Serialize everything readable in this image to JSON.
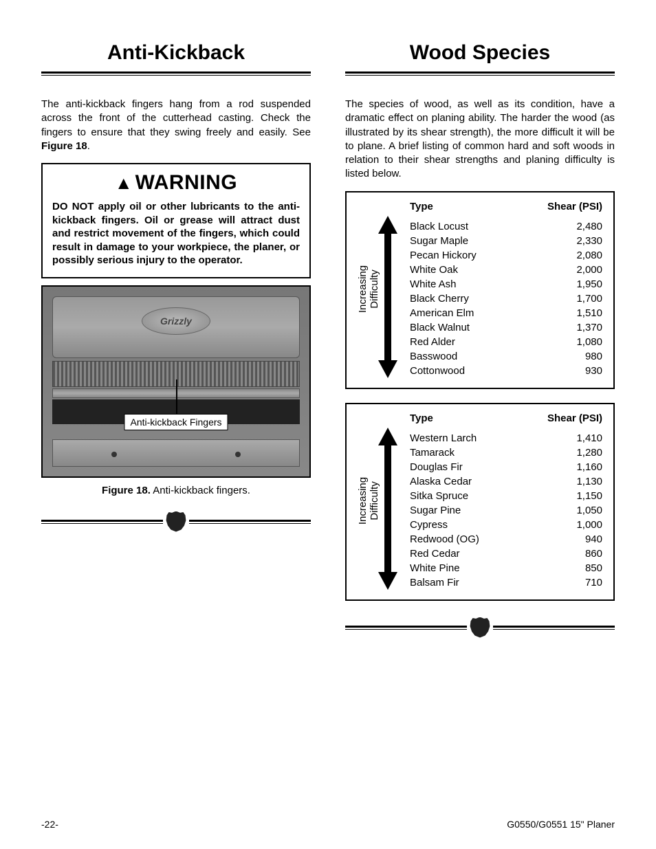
{
  "left": {
    "title": "Anti-Kickback",
    "intro": "The anti-kickback fingers hang from a rod suspended across the front of the cutterhead casting. Check the fingers to ensure that they swing freely and easily. See ",
    "intro_bold": "Figure 18",
    "intro_tail": ".",
    "warning_label": "WARNING",
    "warning_text": "DO NOT apply oil or other lubricants to the anti-kickback fingers. Oil or grease will attract dust and restrict movement of the fingers, which could result in damage to your workpiece, the planer, or possibly serious injury to the operator.",
    "brand": "Grizzly",
    "callout": "Anti-kickback Fingers",
    "caption_bold": "Figure 18.",
    "caption_rest": " Anti-kickback fingers."
  },
  "right": {
    "title": "Wood Species",
    "intro": "The species of wood, as well as its condition, have a dramatic effect on planing ability. The harder the wood (as illustrated by its shear strength), the more difficult it will be to plane. A brief listing of common hard and soft woods in relation to their shear strengths and planing difficulty is listed below.",
    "arrow_label": "Increasing\nDifficulty",
    "col_type": "Type",
    "col_psi": "Shear (PSI)",
    "hardwoods": [
      {
        "type": "Black Locust",
        "psi": "2,480"
      },
      {
        "type": "Sugar Maple",
        "psi": "2,330"
      },
      {
        "type": "Pecan Hickory",
        "psi": "2,080"
      },
      {
        "type": "White Oak",
        "psi": "2,000"
      },
      {
        "type": "White Ash",
        "psi": "1,950"
      },
      {
        "type": "Black Cherry",
        "psi": "1,700"
      },
      {
        "type": "American Elm",
        "psi": "1,510"
      },
      {
        "type": "Black Walnut",
        "psi": "1,370"
      },
      {
        "type": "Red Alder",
        "psi": "1,080"
      },
      {
        "type": "Basswood",
        "psi": "980"
      },
      {
        "type": "Cottonwood",
        "psi": "930"
      }
    ],
    "softwoods": [
      {
        "type": "Western Larch",
        "psi": "1,410"
      },
      {
        "type": "Tamarack",
        "psi": "1,280"
      },
      {
        "type": "Douglas Fir",
        "psi": "1,160"
      },
      {
        "type": "Alaska Cedar",
        "psi": "1,130"
      },
      {
        "type": "Sitka Spruce",
        "psi": "1,150"
      },
      {
        "type": "Sugar Pine",
        "psi": "1,050"
      },
      {
        "type": "Cypress",
        "psi": "1,000"
      },
      {
        "type": "Redwood (OG)",
        "psi": "940"
      },
      {
        "type": "Red Cedar",
        "psi": "860"
      },
      {
        "type": "White Pine",
        "psi": "850"
      },
      {
        "type": "Balsam Fir",
        "psi": "710"
      }
    ]
  },
  "footer": {
    "left": "-22-",
    "right": "G0550/G0551 15\" Planer"
  },
  "style": {
    "colors": {
      "text": "#000000",
      "bg": "#ffffff",
      "border": "#000000"
    },
    "fonts": {
      "body_size": 15,
      "title_size": 30,
      "warning_size": 30
    }
  }
}
